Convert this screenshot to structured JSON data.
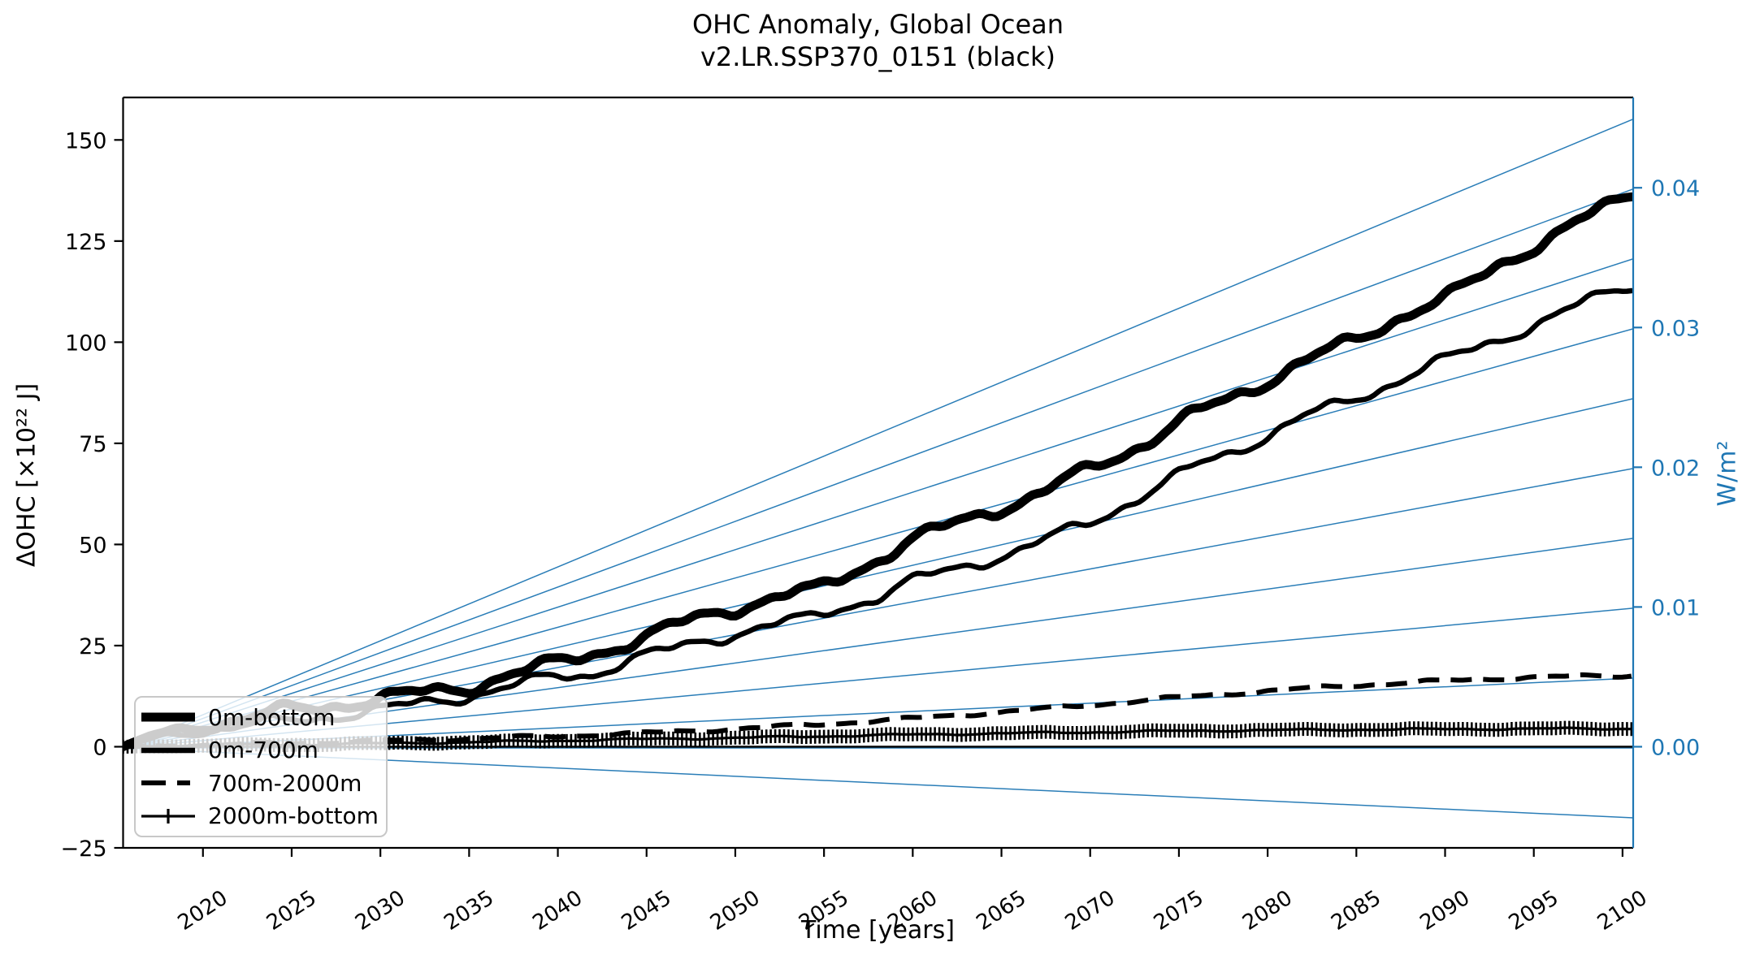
{
  "chart_data": {
    "type": "line",
    "title_line1": "OHC Anomaly, Global Ocean",
    "title_line2": "v2.LR.SSP370_0151 (black)",
    "xlabel": "Time [years]",
    "ylabel_left": "ΔOHC [×10²² J]",
    "ylabel_right": "W/m²",
    "xlim": [
      2015.5,
      2100.6
    ],
    "ylim_left": [
      -25,
      160.5
    ],
    "ylim_right": [
      -0.0072,
      0.0465
    ],
    "grid": false,
    "legend_position": "lower-left",
    "xticks": {
      "values": [
        2020,
        2025,
        2030,
        2035,
        2040,
        2045,
        2050,
        2055,
        2060,
        2065,
        2070,
        2075,
        2080,
        2085,
        2090,
        2095,
        2100
      ],
      "labels": [
        "2020",
        "2025",
        "2030",
        "2035",
        "2040",
        "2045",
        "2050",
        "2055",
        "2060",
        "2065",
        "2070",
        "2075",
        "2080",
        "2085",
        "2090",
        "2095",
        "2100"
      ]
    },
    "yticks_left": {
      "values": [
        150,
        125,
        100,
        75,
        50,
        25,
        0,
        -25
      ],
      "labels": [
        "150",
        "125",
        "100",
        "75",
        "50",
        "25",
        "0",
        "−25"
      ]
    },
    "yticks_right": {
      "values": [
        0.0,
        0.01,
        0.02,
        0.03,
        0.04
      ],
      "labels": [
        "0.00",
        "0.01",
        "0.02",
        "0.03",
        "0.04"
      ]
    },
    "wm2_guide_lines": [
      -0.005,
      0,
      0.005,
      0.01,
      0.015,
      0.02,
      0.025,
      0.03,
      0.035,
      0.04,
      0.045
    ],
    "zero_line": 0,
    "series": [
      {
        "name": "0m-bottom",
        "style": "solid-thick",
        "x": [
          2015.5,
          2017,
          2019,
          2021,
          2023,
          2025,
          2027,
          2029,
          2031,
          2033,
          2035,
          2037,
          2039,
          2041,
          2043,
          2045,
          2047,
          2049,
          2051,
          2053,
          2054.5,
          2056,
          2058,
          2060,
          2062,
          2064,
          2065.5,
          2067,
          2069,
          2071,
          2073,
          2075,
          2077,
          2079,
          2081,
          2083,
          2085,
          2087,
          2088.5,
          2090,
          2091.5,
          2093,
          2095,
          2097,
          2099,
          2100.5
        ],
        "y": [
          0,
          2.5,
          4.5,
          6,
          7.5,
          9,
          10,
          11.5,
          12.5,
          13.5,
          15,
          17.5,
          19.5,
          22,
          24.5,
          27,
          30.5,
          33.5,
          35.5,
          37.5,
          38.5,
          42,
          46.5,
          51,
          54.5,
          58,
          60,
          62,
          66.5,
          71,
          75,
          80,
          84.5,
          88.5,
          93,
          97,
          100.5,
          105.5,
          108.5,
          110.5,
          114.5,
          119,
          124,
          128.5,
          133,
          136.5
        ]
      },
      {
        "name": "0m-700m",
        "style": "solid",
        "x": [
          2015.5,
          2018,
          2020,
          2022,
          2024,
          2026,
          2028,
          2030,
          2032,
          2034,
          2036,
          2038,
          2040,
          2042,
          2044,
          2046,
          2048,
          2050,
          2052,
          2054,
          2056,
          2058,
          2060,
          2062,
          2064,
          2066,
          2068,
          2070,
          2072,
          2074,
          2076,
          2078,
          2080,
          2082,
          2084,
          2086,
          2088,
          2090,
          2092,
          2094,
          2096,
          2098,
          2100.5
        ],
        "y": [
          0,
          3,
          4,
          5,
          6,
          7,
          8,
          9,
          10.5,
          12,
          13.5,
          15.5,
          17.5,
          18,
          21.5,
          23.5,
          26,
          28,
          30,
          31.5,
          34.5,
          37,
          41,
          43.5,
          46,
          48.5,
          52,
          55.5,
          60,
          64.5,
          69.5,
          73,
          77,
          81.5,
          84.5,
          88,
          92,
          95.5,
          99,
          102.5,
          106,
          110,
          114.5
        ]
      },
      {
        "name": "700m-2000m",
        "style": "dashed",
        "x": [
          2015.5,
          2020,
          2025,
          2030,
          2035,
          2040,
          2045,
          2050,
          2055,
          2060,
          2065,
          2070,
          2075,
          2080,
          2085,
          2090,
          2095,
          2100.5
        ],
        "y": [
          0,
          0.4,
          0.9,
          1.4,
          2,
          2.6,
          3.4,
          4.4,
          5.6,
          7,
          8.6,
          10.3,
          12.2,
          13.8,
          15.2,
          16.3,
          17.2,
          17.6
        ]
      },
      {
        "name": "2000m-bottom",
        "style": "solid-plus-markers",
        "x": [
          2015.5,
          2020,
          2025,
          2030,
          2035,
          2040,
          2045,
          2050,
          2055,
          2060,
          2065,
          2070,
          2075,
          2080,
          2085,
          2090,
          2095,
          2100.5
        ],
        "y": [
          0,
          0.3,
          0.5,
          0.8,
          1.1,
          1.5,
          1.9,
          2.2,
          2.6,
          3,
          3.3,
          3.6,
          3.9,
          4.1,
          4.25,
          4.35,
          4.45,
          4.5
        ]
      }
    ],
    "legend": {
      "entries": [
        {
          "label": "0m-bottom"
        },
        {
          "label": "0m-700m"
        },
        {
          "label": "700m-2000m"
        },
        {
          "label": "2000m-bottom"
        }
      ]
    },
    "colors": {
      "line_black": "#000000",
      "axis_blue": "#1f77b4",
      "guide_blue": "#1f77b4",
      "legend_border": "#c8c8c8"
    }
  }
}
